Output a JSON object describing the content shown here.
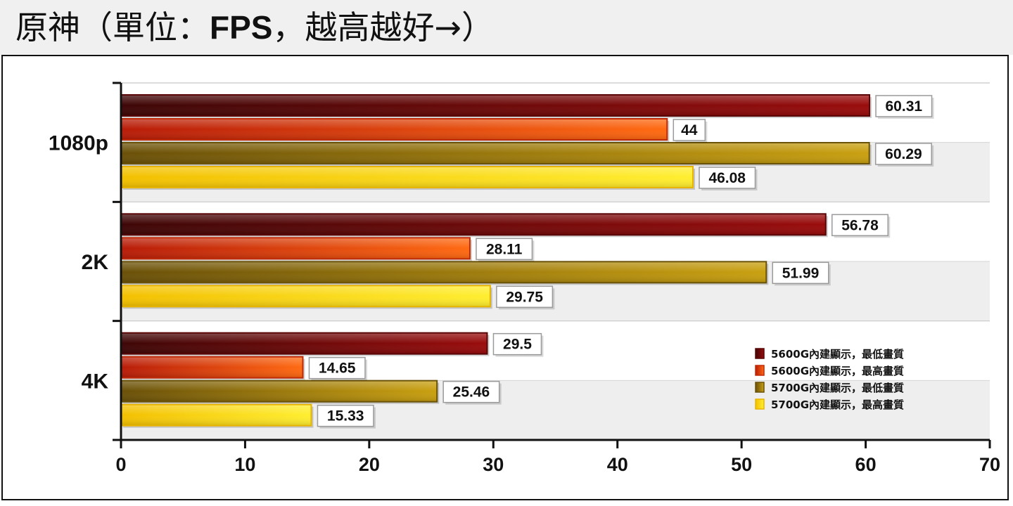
{
  "title": {
    "prefix": "原神（單位：",
    "unit": "FPS",
    "suffix": "，越高越好→）"
  },
  "chart_data": {
    "type": "bar",
    "orientation": "horizontal",
    "categories": [
      "1080p",
      "2K",
      "4K"
    ],
    "series": [
      {
        "name": "5600G內建顯示，最低畫質",
        "values": [
          60.31,
          56.78,
          29.5
        ],
        "color": "#8b0a0a"
      },
      {
        "name": "5600G內建顯示，最高畫質",
        "values": [
          44,
          28.11,
          14.65
        ],
        "color": "#e84a10"
      },
      {
        "name": "5700G內建顯示，最低畫質",
        "values": [
          60.29,
          51.99,
          25.46
        ],
        "color": "#9c7a10"
      },
      {
        "name": "5700G內建顯示，最高畫質",
        "values": [
          46.08,
          29.75,
          15.33
        ],
        "color": "#f6d200"
      }
    ],
    "value_labels": [
      [
        "60.31",
        "56.78",
        "29.5"
      ],
      [
        "44",
        "28.11",
        "14.65"
      ],
      [
        "60.29",
        "51.99",
        "25.46"
      ],
      [
        "46.08",
        "29.75",
        "15.33"
      ]
    ],
    "xlim": [
      0,
      70
    ],
    "xticks": [
      0,
      10,
      20,
      30,
      40,
      50,
      60,
      70
    ],
    "xtick_labels": [
      "0",
      "10",
      "20",
      "30",
      "40",
      "50",
      "60",
      "70"
    ],
    "grid": true,
    "legend_position": "bottom-right"
  }
}
